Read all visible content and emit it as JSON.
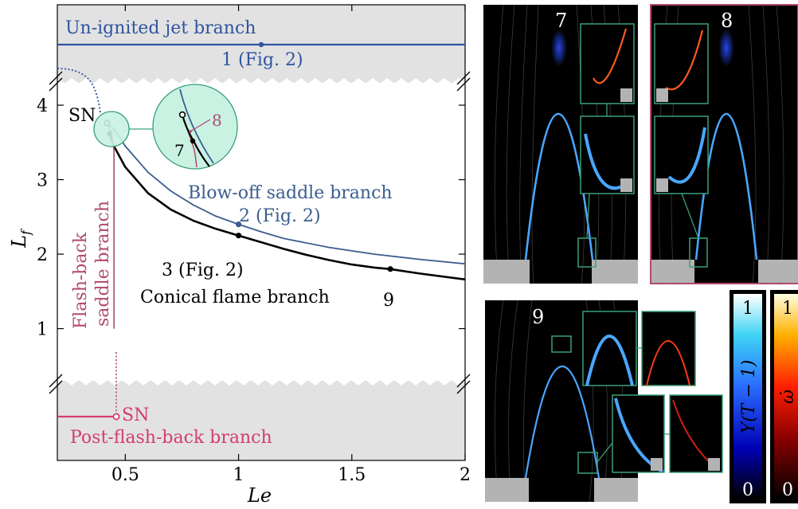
{
  "chart_data": {
    "type": "line",
    "xlabel": "Le",
    "ylabel": "L_f",
    "xlim": [
      0.2,
      2.0
    ],
    "ylim": [
      0.3,
      4.3
    ],
    "x_ticks": [
      0.5,
      1,
      1.5,
      2
    ],
    "x_tick_labels": [
      "0.5",
      "1",
      "1.5",
      "2"
    ],
    "y_ticks": [
      1,
      2,
      3,
      4
    ],
    "y_tick_labels": [
      "1",
      "2",
      "3",
      "4"
    ],
    "grid": false,
    "series": [
      {
        "name": "Conical flame branch",
        "color": "#000000",
        "x": [
          0.43,
          0.45,
          0.5,
          0.6,
          0.7,
          0.8,
          0.9,
          1.0,
          1.1,
          1.2,
          1.3,
          1.4,
          1.5,
          1.6,
          1.67,
          1.8,
          2.0
        ],
        "y": [
          3.62,
          3.45,
          3.17,
          2.82,
          2.6,
          2.45,
          2.34,
          2.25,
          2.16,
          2.07,
          1.99,
          1.92,
          1.86,
          1.82,
          1.8,
          1.74,
          1.66
        ]
      },
      {
        "name": "Blow-off saddle branch",
        "color": "#3b5d8f",
        "x": [
          0.42,
          0.45,
          0.5,
          0.6,
          0.7,
          0.8,
          0.9,
          1.0,
          1.1,
          1.2,
          1.4,
          1.6,
          1.8,
          2.0
        ],
        "y": [
          3.76,
          3.68,
          3.45,
          3.1,
          2.85,
          2.66,
          2.51,
          2.4,
          2.3,
          2.21,
          2.09,
          2.0,
          1.93,
          1.87
        ]
      },
      {
        "name": "Flash-back saddle branch",
        "color": "#b04a6e",
        "x": [
          0.42,
          0.44,
          0.45,
          0.45
        ],
        "y": [
          3.76,
          3.62,
          3.4,
          1.0
        ]
      }
    ],
    "points": [
      {
        "label": "3 (Fig. 2)",
        "x": 1.0,
        "y": 2.25,
        "color": "#000000"
      },
      {
        "label": "9",
        "x": 1.67,
        "y": 1.8,
        "color": "#000000"
      },
      {
        "label": "2 (Fig. 2)",
        "x": 1.0,
        "y": 2.4,
        "color": "#3b5d8f"
      },
      {
        "label": "SN",
        "x": 0.42,
        "y": 3.76,
        "color": "#000000"
      },
      {
        "label": "SN",
        "x": 0.46,
        "y": 0.2,
        "color": "#d23c73"
      }
    ],
    "upper_branch": {
      "name": "Un-ignited jet branch",
      "point_label": "1 (Fig. 2)",
      "color": "#2f54a0"
    },
    "lower_branch": {
      "name": "Post-flash-back branch",
      "color": "#d23c73"
    },
    "annotations": {
      "inset_labels": [
        "7",
        "8"
      ],
      "sn_label": "SN",
      "branch_labels": [
        "Blow-off saddle branch",
        "Conical flame branch",
        "Flash-back saddle branch"
      ]
    }
  },
  "panels": {
    "p7": {
      "label": "7"
    },
    "p8": {
      "label": "8"
    },
    "p9": {
      "label": "9"
    }
  },
  "colorbars": {
    "y": {
      "max": "1",
      "min": "0",
      "label": "Y(T − 1)"
    },
    "omega": {
      "max": "1",
      "min": "0",
      "label": "ω̇"
    }
  },
  "colors": {
    "black_branch": "#000000",
    "blowoff": "#3b5d8f",
    "flashback": "#b04a6e",
    "postflash": "#d23c73",
    "unignited": "#2f54a0",
    "inset_frame": "#3aa07a",
    "inset_fill": "#c9f2e3",
    "band": "#e2e2e2"
  }
}
